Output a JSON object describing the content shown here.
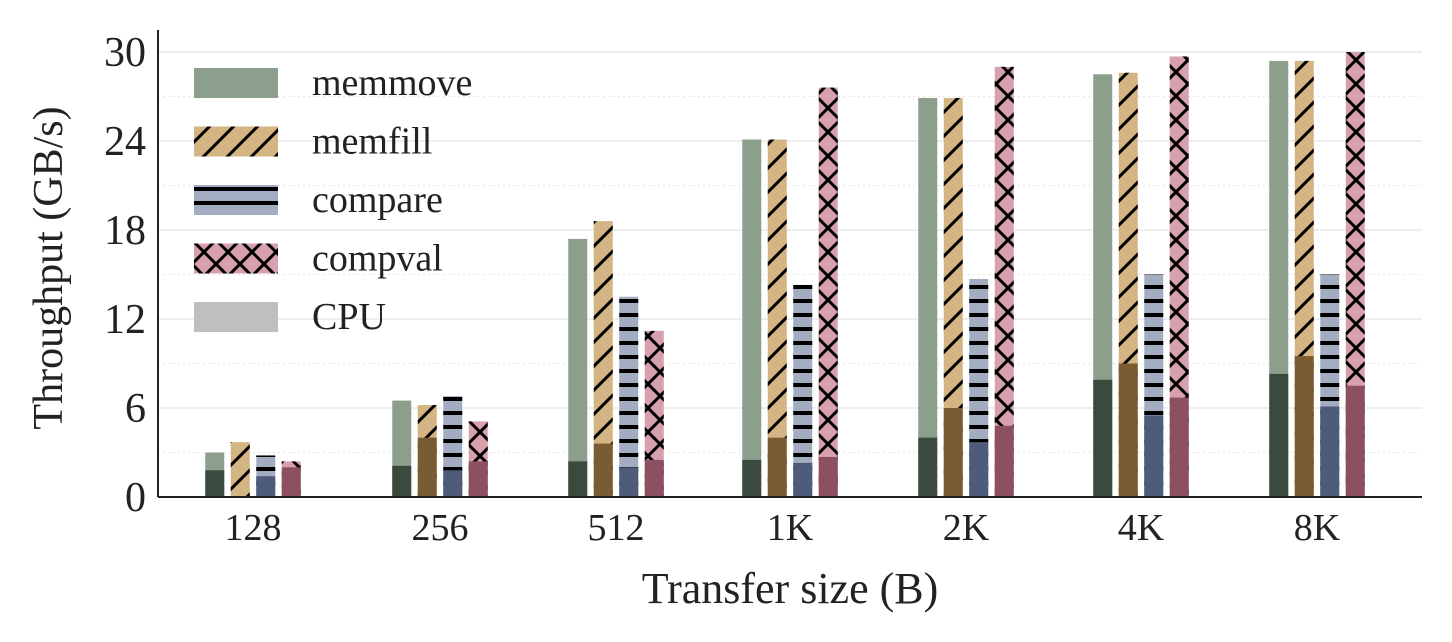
{
  "chart_data": {
    "type": "bar",
    "title": "",
    "xlabel": "Transfer size (B)",
    "ylabel": "Throughput (GB/s)",
    "ylim": [
      0,
      30
    ],
    "yticks": [
      0,
      6,
      12,
      18,
      24,
      30
    ],
    "grid": true,
    "legend_position": "top-left",
    "categories": [
      "128",
      "256",
      "512",
      "1K",
      "2K",
      "4K",
      "8K"
    ],
    "series": [
      {
        "name": "memmove",
        "pattern": "solid",
        "color": "#8c9f8d",
        "cpu_color": "#3b4a3e",
        "values": [
          3.0,
          6.5,
          17.4,
          24.1,
          26.9,
          28.5,
          29.4
        ],
        "cpu_values": [
          1.8,
          2.1,
          2.4,
          2.5,
          4.0,
          7.9,
          8.3
        ]
      },
      {
        "name": "memfill",
        "pattern": "diagonal",
        "color": "#d4b483",
        "cpu_color": "#7a5c33",
        "values": [
          3.7,
          6.2,
          18.6,
          24.1,
          26.9,
          28.6,
          29.4
        ],
        "cpu_values": [
          0.0,
          4.0,
          3.6,
          4.0,
          6.0,
          9.0,
          9.5
        ]
      },
      {
        "name": "compare",
        "pattern": "horizontal",
        "color": "#a3adc2",
        "cpu_color": "#4f5b7a",
        "values": [
          2.8,
          6.8,
          13.5,
          14.3,
          14.7,
          15.0,
          15.0
        ],
        "cpu_values": [
          1.4,
          1.8,
          2.0,
          2.3,
          3.7,
          5.5,
          6.1
        ]
      },
      {
        "name": "compval",
        "pattern": "crosshatch",
        "color": "#d8a0ac",
        "cpu_color": "#8c5060",
        "values": [
          2.4,
          5.1,
          11.2,
          27.6,
          29.0,
          29.7,
          30.0
        ],
        "cpu_values": [
          2.0,
          2.4,
          2.5,
          2.7,
          4.8,
          6.7,
          7.5
        ]
      }
    ],
    "cpu_legend": {
      "name": "CPU",
      "color": "#bfbfbf"
    }
  }
}
